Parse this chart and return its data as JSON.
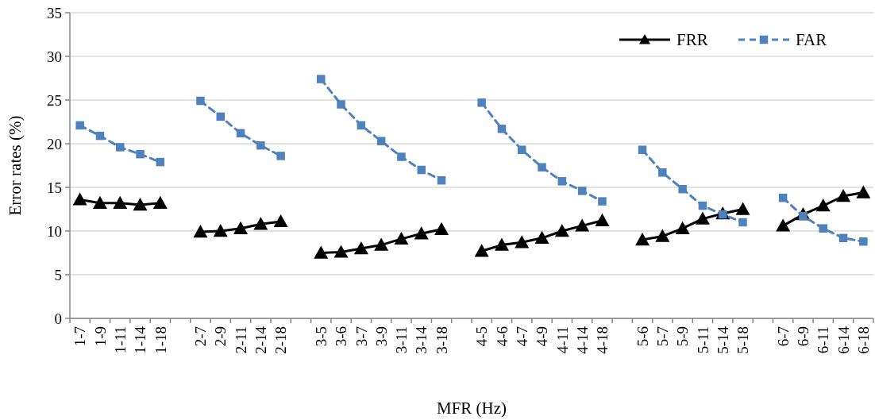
{
  "chart_data": {
    "type": "line",
    "xlabel": "MFR (Hz)",
    "ylabel": "Error  rates (%)",
    "categories": [
      "1-7",
      "1-9",
      "1-11",
      "1-14",
      "1-18",
      null,
      "2-7",
      "2-9",
      "2-11",
      "2-14",
      "2-18",
      null,
      "3-5",
      "3-6",
      "3-7",
      "3-9",
      "3-11",
      "3-14",
      "3-18",
      null,
      "4-5",
      "4-6",
      "4-7",
      "4-9",
      "4-11",
      "4-14",
      "4-18",
      null,
      "5-6",
      "5-7",
      "5-9",
      "5-11",
      "5-14",
      "5-18",
      null,
      "6-7",
      "6-9",
      "6-11",
      "6-14",
      "6-18"
    ],
    "series": [
      {
        "name": "FRR",
        "color": "#000000",
        "marker": "triangle",
        "line_style": "solid",
        "values": [
          13.6,
          13.2,
          13.2,
          13.0,
          13.2,
          null,
          9.9,
          10.0,
          10.3,
          10.8,
          11.1,
          null,
          7.5,
          7.6,
          8.0,
          8.4,
          9.1,
          9.7,
          10.2,
          null,
          7.7,
          8.4,
          8.7,
          9.2,
          10.0,
          10.6,
          11.2,
          null,
          9.0,
          9.4,
          10.3,
          11.4,
          12.0,
          12.5,
          null,
          10.6,
          11.9,
          12.9,
          14.0,
          14.4
        ]
      },
      {
        "name": "FAR",
        "color": "#4f81bd",
        "marker": "square",
        "line_style": "dashed",
        "values": [
          22.1,
          20.9,
          19.6,
          18.8,
          17.9,
          null,
          24.9,
          23.1,
          21.2,
          19.8,
          18.6,
          null,
          27.4,
          24.5,
          22.1,
          20.3,
          18.5,
          17.0,
          15.8,
          null,
          24.7,
          21.7,
          19.3,
          17.3,
          15.7,
          14.6,
          13.4,
          null,
          19.3,
          16.7,
          14.8,
          12.9,
          11.9,
          11.0,
          null,
          13.8,
          11.7,
          10.3,
          9.2,
          8.8
        ]
      }
    ],
    "ylim": [
      0,
      35
    ],
    "yticks": [
      0,
      5,
      10,
      15,
      20,
      25,
      30,
      35
    ],
    "grid": "y",
    "legend": "top right"
  }
}
